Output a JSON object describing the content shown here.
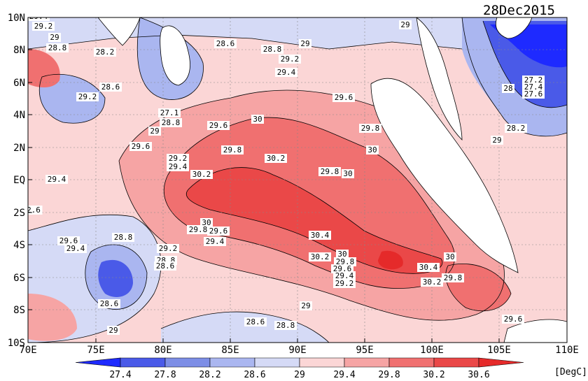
{
  "title": "28Dec2015",
  "units": "[DegC]",
  "x_ticks": [
    "70E",
    "75E",
    "80E",
    "85E",
    "90E",
    "95E",
    "100E",
    "105E",
    "110E"
  ],
  "y_ticks": [
    "10N",
    "8N",
    "6N",
    "4N",
    "2N",
    "EQ",
    "2S",
    "4S",
    "6S",
    "8S",
    "10S"
  ],
  "colorbar": {
    "labels": [
      "27.4",
      "27.8",
      "28.2",
      "28.6",
      "29",
      "29.4",
      "29.8",
      "30.2",
      "30.6"
    ],
    "colors": [
      "#1e2aff",
      "#4a5ae8",
      "#7d8ee6",
      "#aab6f0",
      "#d5daf6",
      "#fbd6d6",
      "#f6a4a4",
      "#f07070",
      "#ea4848",
      "#e52a2a"
    ]
  },
  "contour_labels": [
    "29.4",
    "29.2",
    "29",
    "28.8",
    "28.2",
    "28.6",
    "29",
    "28.8",
    "29.2",
    "29.4",
    "29",
    "28.6",
    "29.2",
    "29.6",
    "27.2",
    "27.4",
    "27.6",
    "28",
    "28.2",
    "29",
    "27.1",
    "28.8",
    "29",
    "29.6",
    "30",
    "29.6",
    "29.8",
    "30.2",
    "29.8",
    "30",
    "29.8",
    "30",
    "29.2",
    "29.4",
    "30.2",
    "29.4",
    "2.6",
    "30",
    "29.8",
    "29.6",
    "29.6",
    "29.4",
    "29.4",
    "28.8",
    "29.2",
    "28.8",
    "28.6",
    "30.4",
    "30",
    "30.2",
    "29.8",
    "29.6",
    "29.4",
    "29.2",
    "30",
    "30.4",
    "30.2",
    "29.8",
    "28.2",
    "28.6",
    "29",
    "29",
    "28.6",
    "28.8",
    "29.6"
  ],
  "map_features": {
    "landmasses": [
      "India tip",
      "Sri Lanka",
      "Sumatra",
      "Malay Peninsula",
      "Java"
    ],
    "grid": true
  }
}
